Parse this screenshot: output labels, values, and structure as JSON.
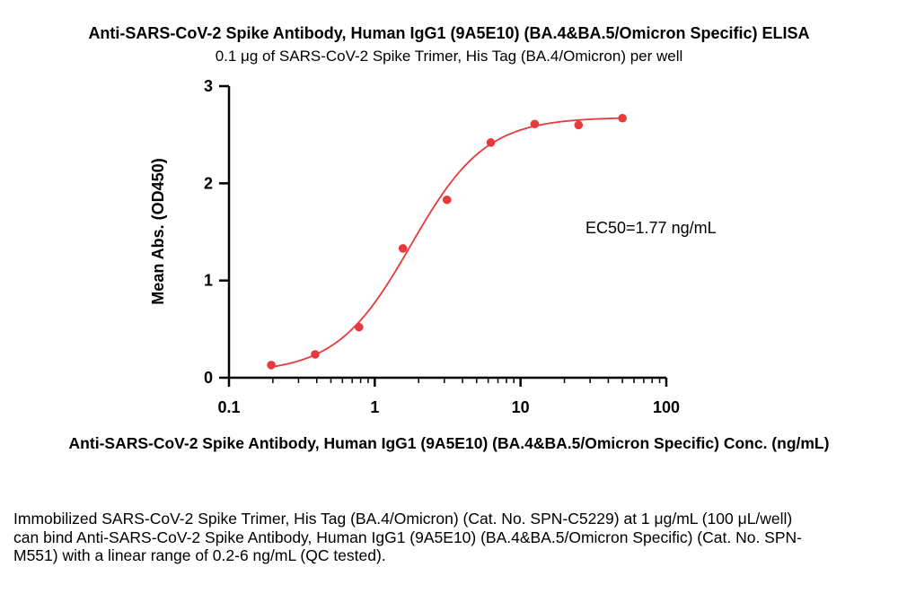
{
  "chart_data": {
    "type": "scatter",
    "title": "Anti-SARS-CoV-2 Spike Antibody, Human IgG1 (9A5E10) (BA.4&BA.5/Omicron Specific) ELISA",
    "subtitle": "0.1 μg of SARS-CoV-2 Spike Trimer, His Tag (BA.4/Omicron) per well",
    "xlabel": "Anti-SARS-CoV-2 Spike Antibody, Human IgG1 (9A5E10) (BA.4&BA.5/Omicron Specific) Conc. (ng/mL)",
    "ylabel": "Mean Abs. (OD450)",
    "x_scale": "log",
    "xlim": [
      0.1,
      100
    ],
    "ylim": [
      0,
      3
    ],
    "x_ticks": [
      0.1,
      1,
      10,
      100
    ],
    "x_tick_labels": [
      "0.1",
      "1",
      "10",
      "100"
    ],
    "y_ticks": [
      0,
      1,
      2,
      3
    ],
    "y_tick_labels": [
      "0",
      "1",
      "2",
      "3"
    ],
    "grid": false,
    "color": "#e8393c",
    "points": [
      {
        "x": 0.195,
        "y": 0.13
      },
      {
        "x": 0.39,
        "y": 0.24
      },
      {
        "x": 0.78,
        "y": 0.52
      },
      {
        "x": 1.56,
        "y": 1.33
      },
      {
        "x": 3.13,
        "y": 1.83
      },
      {
        "x": 6.25,
        "y": 2.42
      },
      {
        "x": 12.5,
        "y": 2.61
      },
      {
        "x": 25,
        "y": 2.6
      },
      {
        "x": 50,
        "y": 2.67
      }
    ],
    "fit": {
      "model": "4PL",
      "bottom": 0.05,
      "top": 2.68,
      "ec50": 1.77,
      "hill": 1.7,
      "x_range": [
        0.195,
        50
      ]
    },
    "annotation": "EC50=1.77 ng/mL"
  },
  "caption": "Immobilized SARS-CoV-2 Spike Trimer, His Tag (BA.4/Omicron) (Cat. No. SPN-C5229) at 1 μg/mL (100 μL/well) can bind Anti-SARS-CoV-2 Spike Antibody, Human IgG1 (9A5E10) (BA.4&BA.5/Omicron Specific) (Cat. No. SPN-M551) with a linear range of 0.2-6 ng/mL (QC tested)."
}
